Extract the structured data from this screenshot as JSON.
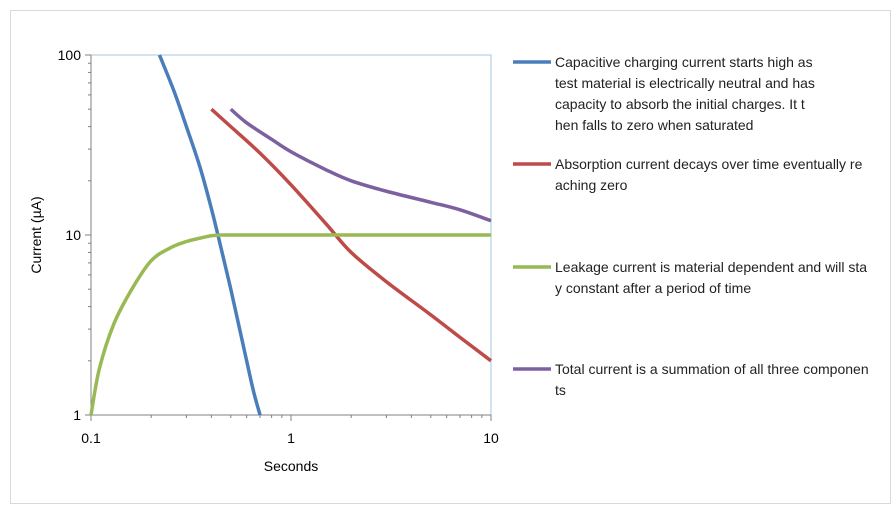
{
  "chart_data": {
    "type": "line",
    "title": "",
    "xlabel": "Seconds",
    "ylabel": "Current (µA)",
    "x_scale": "log",
    "y_scale": "log",
    "xlim": [
      0.1,
      10
    ],
    "ylim": [
      1,
      100
    ],
    "x_ticks": [
      "0.1",
      "1",
      "10"
    ],
    "y_ticks": [
      "1",
      "10",
      "100"
    ],
    "grid": false,
    "legend_position": "right",
    "series": [
      {
        "name": "Capacitive charging current starts high as test material is electrically neutral and has capacity to absorb the initial charges. It then falls to zero when saturated",
        "color": "#4a7ebb",
        "x": [
          0.22,
          0.26,
          0.3,
          0.35,
          0.4,
          0.45,
          0.5,
          0.55,
          0.6,
          0.65,
          0.7
        ],
        "y": [
          100,
          63,
          40,
          24,
          14,
          8.2,
          5.0,
          3.1,
          2.0,
          1.35,
          1.0
        ]
      },
      {
        "name": "Absorption current decays over time eventually reaching zero",
        "color": "#be4b48",
        "x": [
          0.4,
          0.5,
          0.7,
          1.0,
          1.5,
          2.0,
          3.0,
          5.0,
          7.0,
          10.0
        ],
        "y": [
          50,
          40,
          28.5,
          19,
          11.5,
          8.0,
          5.5,
          3.6,
          2.7,
          2.0
        ]
      },
      {
        "name": "Leakage current is material dependent and will stay constant after a period of time",
        "color": "#98b954",
        "x": [
          0.1,
          0.11,
          0.13,
          0.16,
          0.2,
          0.25,
          0.3,
          0.35,
          0.4,
          0.45,
          0.5,
          1.0,
          2.0,
          5.0,
          10.0
        ],
        "y": [
          1.0,
          1.8,
          3.2,
          5.0,
          7.2,
          8.5,
          9.2,
          9.6,
          9.9,
          10,
          10,
          10,
          10,
          10,
          10
        ]
      },
      {
        "name": "Total current is a summation of all three components",
        "color": "#7d60a0",
        "x": [
          0.5,
          0.6,
          0.8,
          1.0,
          1.5,
          2.0,
          3.0,
          5.0,
          7.0,
          10.0
        ],
        "y": [
          50,
          42,
          34,
          29,
          23,
          20,
          17.5,
          15.2,
          13.8,
          12.0
        ]
      }
    ]
  }
}
